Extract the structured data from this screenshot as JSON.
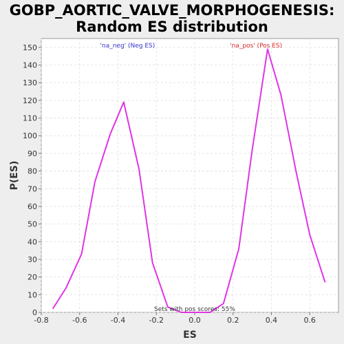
{
  "title_line1": "GOBP_AORTIC_VALVE_MORPHOGENESIS:",
  "title_line2": "Random ES distribution",
  "colors": {
    "background": "#eeeeee",
    "plot_bg": "#ffffff",
    "series": "#e033e6",
    "neg_label": "#3333cc",
    "pos_label": "#d92626"
  },
  "chart_data": {
    "type": "line",
    "xlabel": "ES",
    "ylabel": "P(ES)",
    "xlim": [
      -0.8,
      0.75
    ],
    "ylim": [
      0,
      155
    ],
    "xticks": [
      "-0.8",
      "-0.6",
      "-0.4",
      "-0.2",
      "0.0",
      "0.2",
      "0.4",
      "0.6"
    ],
    "yticks": [
      "0",
      "10",
      "20",
      "30",
      "40",
      "50",
      "60",
      "70",
      "80",
      "90",
      "100",
      "110",
      "120",
      "130",
      "140",
      "150"
    ],
    "grid": true,
    "series": [
      {
        "x": [
          -0.74,
          -0.67,
          -0.59,
          -0.52,
          -0.44,
          -0.37,
          -0.29,
          -0.22,
          -0.14,
          -0.07,
          0.0,
          0.08,
          0.15,
          0.23,
          0.3,
          0.38,
          0.45,
          0.53,
          0.6,
          0.68
        ],
        "y": [
          2,
          14,
          33,
          74,
          101,
          119,
          81,
          28,
          3,
          0,
          0,
          0,
          5,
          36,
          92,
          149,
          123,
          79,
          44,
          17
        ]
      }
    ],
    "annotations": {
      "neg": "'na_neg' (Neg ES)",
      "pos": "'na_pos' (Pos ES)",
      "footer": "Sets with pos scores: 55%"
    }
  }
}
